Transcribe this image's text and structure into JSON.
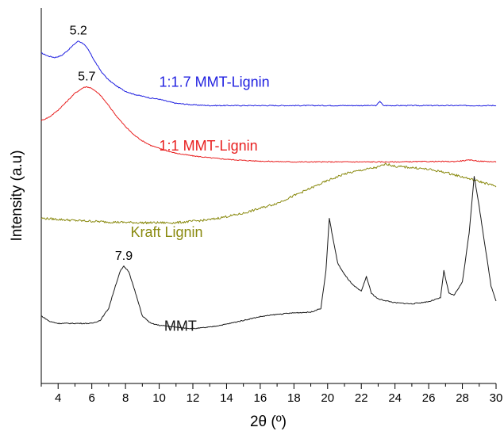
{
  "chart_data": {
    "type": "line",
    "xlabel": "2θ (º)",
    "ylabel": "Intensity (a.u)",
    "xlim": [
      3,
      30
    ],
    "x_ticks": [
      "4",
      "6",
      "8",
      "10",
      "12",
      "14",
      "16",
      "18",
      "20",
      "22",
      "24",
      "26",
      "28",
      "30"
    ],
    "y_ticks": "none",
    "grid": false,
    "legend": "inline labels beside each trace",
    "series": [
      {
        "name": "1:1.7 MMT-Lignin",
        "color": "#1f1fe0",
        "points": [
          [
            3.0,
            0.88
          ],
          [
            3.4,
            0.872
          ],
          [
            3.8,
            0.868
          ],
          [
            4.2,
            0.873
          ],
          [
            4.6,
            0.888
          ],
          [
            5.0,
            0.905
          ],
          [
            5.2,
            0.912
          ],
          [
            5.5,
            0.905
          ],
          [
            5.8,
            0.888
          ],
          [
            6.2,
            0.856
          ],
          [
            6.6,
            0.828
          ],
          [
            7.0,
            0.808
          ],
          [
            7.5,
            0.791
          ],
          [
            8.0,
            0.778
          ],
          [
            8.5,
            0.77
          ],
          [
            9.0,
            0.765
          ],
          [
            9.5,
            0.76
          ],
          [
            10.0,
            0.757
          ],
          [
            10.5,
            0.751
          ],
          [
            11.0,
            0.746
          ],
          [
            12.0,
            0.742
          ],
          [
            13.0,
            0.74
          ],
          [
            14.0,
            0.74
          ],
          [
            15.0,
            0.74
          ],
          [
            16.0,
            0.74
          ],
          [
            18.0,
            0.74
          ],
          [
            20.0,
            0.74
          ],
          [
            22.0,
            0.74
          ],
          [
            22.9,
            0.74
          ],
          [
            23.1,
            0.752
          ],
          [
            23.3,
            0.74
          ],
          [
            24.0,
            0.74
          ],
          [
            26.0,
            0.74
          ],
          [
            28.0,
            0.74
          ],
          [
            30.0,
            0.74
          ]
        ],
        "peaks": [
          {
            "x": 5.2,
            "label": "5.2"
          }
        ]
      },
      {
        "name": "1:1 MMT-Lignin",
        "color": "#e81f1f",
        "points": [
          [
            3.0,
            0.7
          ],
          [
            3.5,
            0.71
          ],
          [
            4.0,
            0.728
          ],
          [
            4.5,
            0.75
          ],
          [
            5.0,
            0.773
          ],
          [
            5.5,
            0.788
          ],
          [
            5.7,
            0.79
          ],
          [
            6.0,
            0.786
          ],
          [
            6.5,
            0.768
          ],
          [
            7.0,
            0.74
          ],
          [
            7.5,
            0.71
          ],
          [
            8.0,
            0.684
          ],
          [
            8.5,
            0.662
          ],
          [
            9.0,
            0.646
          ],
          [
            9.5,
            0.634
          ],
          [
            10.0,
            0.626
          ],
          [
            10.5,
            0.619
          ],
          [
            11.0,
            0.613
          ],
          [
            12.0,
            0.606
          ],
          [
            13.0,
            0.601
          ],
          [
            14.0,
            0.597
          ],
          [
            15.0,
            0.594
          ],
          [
            16.0,
            0.592
          ],
          [
            18.0,
            0.59
          ],
          [
            20.0,
            0.59
          ],
          [
            22.0,
            0.59
          ],
          [
            24.0,
            0.59
          ],
          [
            26.0,
            0.591
          ],
          [
            27.5,
            0.591
          ],
          [
            28.5,
            0.595
          ],
          [
            29.0,
            0.592
          ],
          [
            30.0,
            0.59
          ]
        ],
        "peaks": [
          {
            "x": 5.7,
            "label": "5.7"
          }
        ]
      },
      {
        "name": "Kraft Lignin",
        "color": "#8a8a10",
        "points": [
          [
            3.0,
            0.44
          ],
          [
            5.0,
            0.434
          ],
          [
            7.0,
            0.43
          ],
          [
            9.0,
            0.428
          ],
          [
            11.0,
            0.428
          ],
          [
            13.0,
            0.436
          ],
          [
            15.0,
            0.453
          ],
          [
            17.0,
            0.48
          ],
          [
            18.0,
            0.5
          ],
          [
            19.0,
            0.52
          ],
          [
            20.0,
            0.54
          ],
          [
            21.0,
            0.558
          ],
          [
            22.0,
            0.568
          ],
          [
            23.0,
            0.576
          ],
          [
            23.5,
            0.585
          ],
          [
            24.0,
            0.578
          ],
          [
            25.0,
            0.575
          ],
          [
            26.0,
            0.57
          ],
          [
            27.0,
            0.562
          ],
          [
            28.0,
            0.55
          ],
          [
            29.0,
            0.538
          ],
          [
            30.0,
            0.525
          ]
        ]
      },
      {
        "name": "MMT",
        "color": "#1a1a1a",
        "points": [
          [
            3.0,
            0.18
          ],
          [
            3.5,
            0.165
          ],
          [
            4.0,
            0.16
          ],
          [
            5.0,
            0.16
          ],
          [
            6.0,
            0.16
          ],
          [
            6.5,
            0.168
          ],
          [
            7.0,
            0.2
          ],
          [
            7.4,
            0.26
          ],
          [
            7.7,
            0.3
          ],
          [
            7.9,
            0.312
          ],
          [
            8.2,
            0.298
          ],
          [
            8.6,
            0.24
          ],
          [
            9.0,
            0.18
          ],
          [
            9.5,
            0.16
          ],
          [
            10.0,
            0.155
          ],
          [
            11.0,
            0.15
          ],
          [
            12.0,
            0.146
          ],
          [
            13.0,
            0.15
          ],
          [
            14.0,
            0.158
          ],
          [
            15.0,
            0.168
          ],
          [
            16.0,
            0.178
          ],
          [
            17.0,
            0.184
          ],
          [
            18.0,
            0.188
          ],
          [
            19.0,
            0.19
          ],
          [
            19.6,
            0.2
          ],
          [
            19.9,
            0.3
          ],
          [
            20.1,
            0.44
          ],
          [
            20.3,
            0.39
          ],
          [
            20.6,
            0.32
          ],
          [
            21.0,
            0.29
          ],
          [
            21.5,
            0.262
          ],
          [
            22.0,
            0.245
          ],
          [
            22.3,
            0.285
          ],
          [
            22.6,
            0.24
          ],
          [
            23.0,
            0.225
          ],
          [
            24.0,
            0.215
          ],
          [
            25.0,
            0.212
          ],
          [
            26.0,
            0.218
          ],
          [
            26.7,
            0.228
          ],
          [
            26.9,
            0.3
          ],
          [
            27.2,
            0.24
          ],
          [
            27.5,
            0.235
          ],
          [
            28.0,
            0.27
          ],
          [
            28.4,
            0.4
          ],
          [
            28.7,
            0.552
          ],
          [
            29.0,
            0.47
          ],
          [
            29.4,
            0.35
          ],
          [
            29.7,
            0.26
          ],
          [
            30.0,
            0.22
          ]
        ],
        "peaks": [
          {
            "x": 7.9,
            "label": "7.9"
          }
        ]
      }
    ]
  }
}
